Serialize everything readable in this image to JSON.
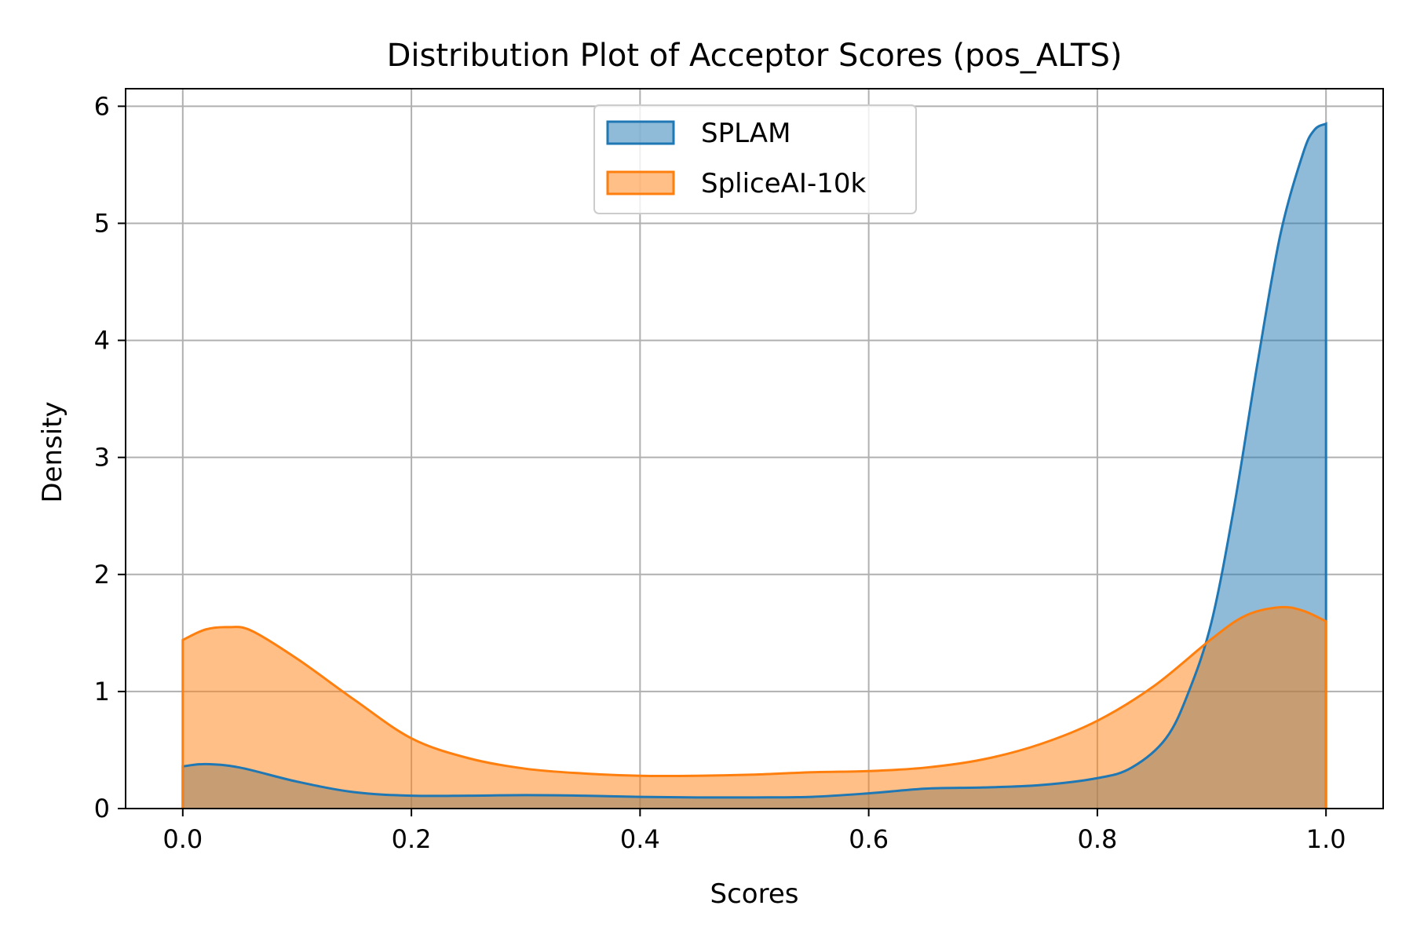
{
  "chart_data": {
    "type": "area",
    "title": "Distribution Plot of Acceptor Scores (pos_ALTS)",
    "xlabel": "Scores",
    "ylabel": "Density",
    "xlim": [
      -0.05,
      1.05
    ],
    "ylim": [
      0,
      6.15
    ],
    "xticks": [
      0.0,
      0.2,
      0.4,
      0.6,
      0.8,
      1.0
    ],
    "xtick_labels": [
      "0.0",
      "0.2",
      "0.4",
      "0.6",
      "0.8",
      "1.0"
    ],
    "yticks": [
      0,
      1,
      2,
      3,
      4,
      5,
      6
    ],
    "ytick_labels": [
      "0",
      "1",
      "2",
      "3",
      "4",
      "5",
      "6"
    ],
    "grid": true,
    "legend_position": "top-center",
    "series": [
      {
        "name": "SPLAM",
        "color": "#1f77b4",
        "x": [
          0.0,
          0.02,
          0.05,
          0.1,
          0.15,
          0.2,
          0.25,
          0.3,
          0.35,
          0.4,
          0.45,
          0.5,
          0.55,
          0.6,
          0.65,
          0.7,
          0.75,
          0.8,
          0.83,
          0.86,
          0.88,
          0.9,
          0.92,
          0.94,
          0.96,
          0.98,
          0.99,
          1.0
        ],
        "y": [
          0.36,
          0.38,
          0.35,
          0.23,
          0.14,
          0.11,
          0.11,
          0.115,
          0.11,
          0.1,
          0.095,
          0.095,
          0.1,
          0.13,
          0.17,
          0.18,
          0.2,
          0.26,
          0.35,
          0.6,
          1.0,
          1.6,
          2.6,
          3.8,
          4.9,
          5.6,
          5.8,
          5.85
        ]
      },
      {
        "name": "SpliceAI-10k",
        "color": "#ff7f0e",
        "x": [
          0.0,
          0.02,
          0.04,
          0.06,
          0.1,
          0.15,
          0.2,
          0.25,
          0.3,
          0.35,
          0.4,
          0.45,
          0.5,
          0.55,
          0.6,
          0.65,
          0.7,
          0.75,
          0.8,
          0.85,
          0.9,
          0.93,
          0.96,
          0.98,
          1.0
        ],
        "y": [
          1.44,
          1.53,
          1.55,
          1.52,
          1.28,
          0.93,
          0.6,
          0.43,
          0.34,
          0.3,
          0.28,
          0.28,
          0.29,
          0.31,
          0.32,
          0.35,
          0.42,
          0.55,
          0.75,
          1.05,
          1.45,
          1.65,
          1.72,
          1.69,
          1.6
        ]
      }
    ]
  }
}
